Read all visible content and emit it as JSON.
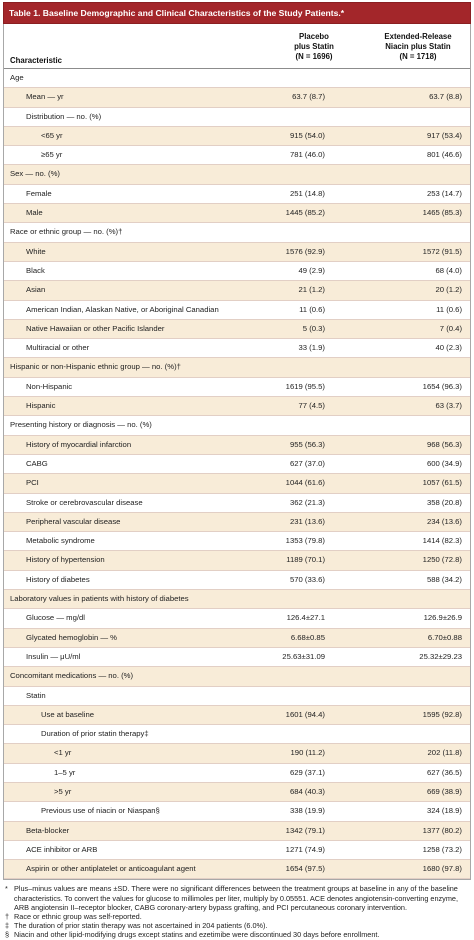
{
  "caption": {
    "label": "Table 1.",
    "title": "Baseline Demographic and Clinical Characteristics of the Study Patients.*"
  },
  "columns": {
    "characteristic": "Characteristic",
    "group1": [
      "Placebo",
      "plus Statin",
      "(N = 1696)"
    ],
    "group2": [
      "Extended-Release",
      "Niacin plus Statin",
      "(N = 1718)"
    ]
  },
  "rows": [
    {
      "label": "Age",
      "indent": 0,
      "v1": "",
      "v2": ""
    },
    {
      "label": "Mean — yr",
      "indent": 1,
      "v1": "63.7 (8.7)",
      "v2": "63.7 (8.8)"
    },
    {
      "label": "Distribution — no. (%)",
      "indent": 1,
      "v1": "",
      "v2": ""
    },
    {
      "label": "<65 yr",
      "indent": 2,
      "v1": "915 (54.0)",
      "v2": "917 (53.4)"
    },
    {
      "label": "≥65 yr",
      "indent": 2,
      "v1": "781 (46.0)",
      "v2": "801 (46.6)"
    },
    {
      "label": "Sex — no. (%)",
      "indent": 0,
      "v1": "",
      "v2": ""
    },
    {
      "label": "Female",
      "indent": 1,
      "v1": "251 (14.8)",
      "v2": "253 (14.7)"
    },
    {
      "label": "Male",
      "indent": 1,
      "v1": "1445 (85.2)",
      "v2": "1465 (85.3)"
    },
    {
      "label": "Race or ethnic group — no. (%)†",
      "indent": 0,
      "v1": "",
      "v2": ""
    },
    {
      "label": "White",
      "indent": 1,
      "v1": "1576 (92.9)",
      "v2": "1572 (91.5)"
    },
    {
      "label": "Black",
      "indent": 1,
      "v1": "49 (2.9)",
      "v2": "68 (4.0)"
    },
    {
      "label": "Asian",
      "indent": 1,
      "v1": "21 (1.2)",
      "v2": "20 (1.2)"
    },
    {
      "label": "American Indian, Alaskan Native, or Aboriginal Canadian",
      "indent": 1,
      "v1": "11 (0.6)",
      "v2": "11 (0.6)"
    },
    {
      "label": "Native Hawaiian or other Pacific Islander",
      "indent": 1,
      "v1": "5 (0.3)",
      "v2": "7 (0.4)"
    },
    {
      "label": "Multiracial or other",
      "indent": 1,
      "v1": "33 (1.9)",
      "v2": "40 (2.3)"
    },
    {
      "label": "Hispanic or non-Hispanic ethnic group — no. (%)†",
      "indent": 0,
      "v1": "",
      "v2": ""
    },
    {
      "label": "Non-Hispanic",
      "indent": 1,
      "v1": "1619 (95.5)",
      "v2": "1654 (96.3)"
    },
    {
      "label": "Hispanic",
      "indent": 1,
      "v1": "77 (4.5)",
      "v2": "63 (3.7)"
    },
    {
      "label": "Presenting history or diagnosis — no. (%)",
      "indent": 0,
      "v1": "",
      "v2": ""
    },
    {
      "label": "History of myocardial infarction",
      "indent": 1,
      "v1": "955 (56.3)",
      "v2": "968 (56.3)"
    },
    {
      "label": "CABG",
      "indent": 1,
      "v1": "627 (37.0)",
      "v2": "600 (34.9)"
    },
    {
      "label": "PCI",
      "indent": 1,
      "v1": "1044 (61.6)",
      "v2": "1057 (61.5)"
    },
    {
      "label": "Stroke or cerebrovascular disease",
      "indent": 1,
      "v1": "362 (21.3)",
      "v2": "358 (20.8)"
    },
    {
      "label": "Peripheral vascular disease",
      "indent": 1,
      "v1": "231 (13.6)",
      "v2": "234 (13.6)"
    },
    {
      "label": "Metabolic syndrome",
      "indent": 1,
      "v1": "1353 (79.8)",
      "v2": "1414 (82.3)"
    },
    {
      "label": "History of hypertension",
      "indent": 1,
      "v1": "1189 (70.1)",
      "v2": "1250 (72.8)"
    },
    {
      "label": "History of diabetes",
      "indent": 1,
      "v1": "570 (33.6)",
      "v2": "588 (34.2)"
    },
    {
      "label": "Laboratory values in patients with history of diabetes",
      "indent": 0,
      "v1": "",
      "v2": ""
    },
    {
      "label": "Glucose — mg/dl",
      "indent": 1,
      "v1": "126.4±27.1",
      "v2": "126.9±26.9"
    },
    {
      "label": "Glycated hemoglobin — %",
      "indent": 1,
      "v1": "6.68±0.85",
      "v2": "6.70±0.88"
    },
    {
      "label": "Insulin — μU/ml",
      "indent": 1,
      "v1": "25.63±31.09",
      "v2": "25.32±29.23"
    },
    {
      "label": "Concomitant medications — no. (%)",
      "indent": 0,
      "v1": "",
      "v2": ""
    },
    {
      "label": "Statin",
      "indent": 1,
      "v1": "",
      "v2": ""
    },
    {
      "label": "Use at baseline",
      "indent": 2,
      "v1": "1601 (94.4)",
      "v2": "1595 (92.8)"
    },
    {
      "label": "Duration of prior statin therapy‡",
      "indent": 2,
      "v1": "",
      "v2": ""
    },
    {
      "label": "<1 yr",
      "indent": 3,
      "v1": "190 (11.2)",
      "v2": "202 (11.8)"
    },
    {
      "label": "1–5 yr",
      "indent": 3,
      "v1": "629 (37.1)",
      "v2": "627 (36.5)"
    },
    {
      "label": ">5 yr",
      "indent": 3,
      "v1": "684 (40.3)",
      "v2": "669 (38.9)"
    },
    {
      "label": "Previous use of niacin or Niaspan§",
      "indent": 2,
      "v1": "338 (19.9)",
      "v2": "324 (18.9)"
    },
    {
      "label": "Beta-blocker",
      "indent": 1,
      "v1": "1342 (79.1)",
      "v2": "1377 (80.2)"
    },
    {
      "label": "ACE inhibitor or ARB",
      "indent": 1,
      "v1": "1271 (74.9)",
      "v2": "1258 (73.2)"
    },
    {
      "label": "Aspirin or other antiplatelet or anticoagulant agent",
      "indent": 1,
      "v1": "1654 (97.5)",
      "v2": "1680 (97.8)"
    }
  ],
  "footnotes": [
    {
      "symbol": "*",
      "text": "Plus–minus values are means ±SD. There were no significant differences between the treatment groups at baseline in any of the baseline characteristics. To convert the values for glucose to millimoles per liter, multiply by 0.05551. ACE denotes angiotensin-converting enzyme, ARB angiotensin II–receptor blocker, CABG coronary-artery bypass grafting, and PCI percutaneous coronary intervention."
    },
    {
      "symbol": "†",
      "text": "Race or ethnic group was self-reported."
    },
    {
      "symbol": "‡",
      "text": "The duration of prior statin therapy was not ascertained in 204 patients (6.0%)."
    },
    {
      "symbol": "§",
      "text": "Niacin and other lipid-modifying drugs except statins and ezetimibe were discontinued 30 days before enrollment."
    }
  ],
  "colors": {
    "caption_bg": "#a3262a",
    "row_shade": "#f8ecd8",
    "row_rule": "#e2cfc5"
  }
}
